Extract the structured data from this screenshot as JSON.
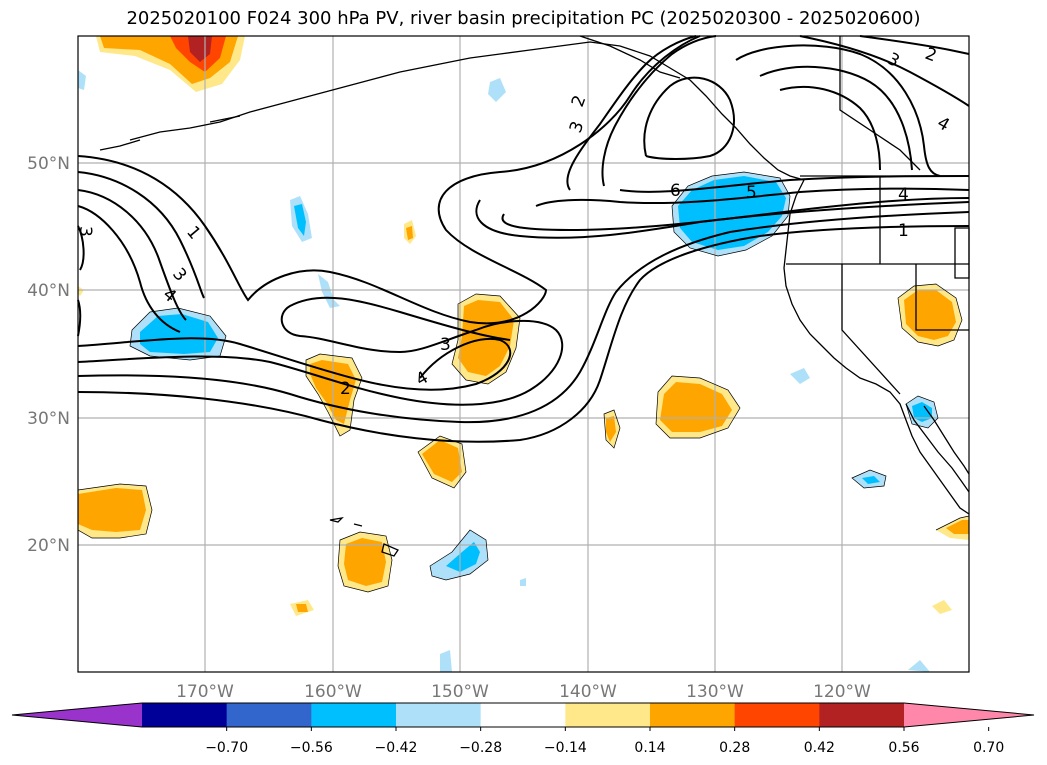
{
  "title": "2025020100 F024 300 hPa PV, river basin precipitation PC (2025020300 - 2025020600)",
  "lat_labels": [
    "50°N",
    "40°N",
    "30°N",
    "20°N"
  ],
  "lon_labels": [
    "170°W",
    "160°W",
    "150°W",
    "140°W",
    "130°W",
    "120°W"
  ],
  "colorbar": {
    "colors": [
      "#9933cc",
      "#000099",
      "#3366cc",
      "#00bfff",
      "#aee1f9",
      "#ffffff",
      "#ffe88a",
      "#ffa500",
      "#ff4500",
      "#b22222",
      "#ff88aa"
    ],
    "labels": [
      "−0.70",
      "−0.56",
      "−0.42",
      "−0.28",
      "−0.14",
      "0.14",
      "0.28",
      "0.42",
      "0.56",
      "0.70"
    ]
  },
  "contour_labels": [
    "1",
    "3",
    "4",
    "2",
    "3",
    "4",
    "3",
    "2",
    "6",
    "5",
    "4",
    "1",
    "3",
    "2",
    "4",
    "3"
  ]
}
